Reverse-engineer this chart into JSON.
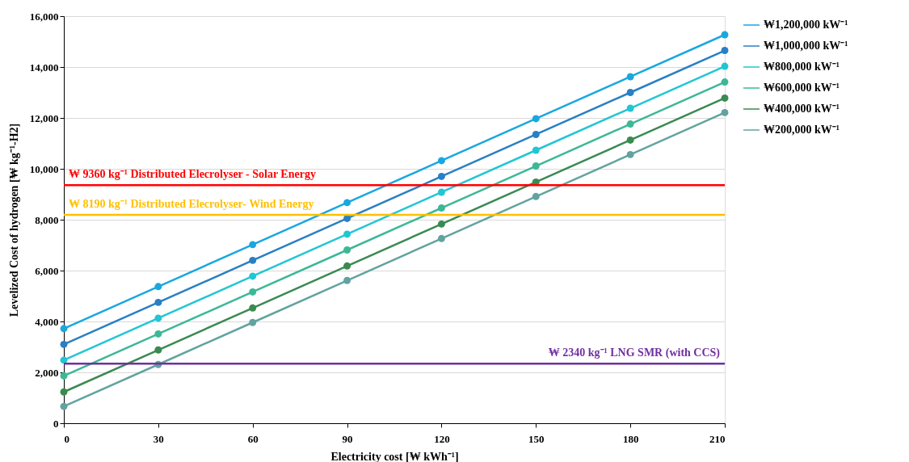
{
  "chart_data": {
    "type": "line",
    "xlabel": "Electricity cost [₩ kWh⁻¹]",
    "ylabel": "Levelized Cost of hydrogen [₩ kg⁻¹-H2]",
    "x": [
      0,
      30,
      60,
      90,
      120,
      150,
      180,
      210
    ],
    "series": [
      {
        "name": "₩1,200,000 kW⁻¹",
        "color": "#1aa7e0",
        "values": [
          3720,
          5370,
          7020,
          8670,
          10320,
          11970,
          13620,
          15270
        ]
      },
      {
        "name": "₩1,000,000 kW⁻¹",
        "color": "#2a7fc4",
        "values": [
          3100,
          4750,
          6400,
          8050,
          9700,
          11350,
          13000,
          14650
        ]
      },
      {
        "name": "₩800,000 kW⁻¹",
        "color": "#22c6d3",
        "values": [
          2480,
          4130,
          5780,
          7430,
          9080,
          10730,
          12380,
          14030
        ]
      },
      {
        "name": "₩600,000 kW⁻¹",
        "color": "#3cb896",
        "values": [
          1860,
          3510,
          5160,
          6810,
          8460,
          10110,
          11760,
          13410
        ]
      },
      {
        "name": "₩400,000 kW⁻¹",
        "color": "#3a8a52",
        "values": [
          1230,
          2880,
          4530,
          6180,
          7830,
          9480,
          11130,
          12780
        ]
      },
      {
        "name": "₩200,000 kW⁻¹",
        "color": "#62a3a0",
        "values": [
          660,
          2310,
          3960,
          5610,
          7260,
          8910,
          10560,
          12210
        ]
      }
    ],
    "ref_lines": [
      {
        "axis": "y",
        "value": 9360,
        "label": "₩ 9360 kg⁻¹  Distributed Elecrolyser - Solar Energy",
        "color": "#ff0000"
      },
      {
        "axis": "y",
        "value": 8190,
        "label": "₩ 8190 kg⁻¹  Distributed Elecrolyser- Wind Energy",
        "color": "#ffc000"
      },
      {
        "axis": "y",
        "value": 2340,
        "label": "₩ 2340 kg⁻¹  LNG SMR (with CCS)",
        "color": "#7030a0"
      }
    ],
    "xlim": [
      0,
      210
    ],
    "xticks": [
      0,
      30,
      60,
      90,
      120,
      150,
      180,
      210
    ],
    "ylim": [
      0,
      16000
    ],
    "yticks": [
      0,
      {
        "value": 2000,
        "label": "2,000"
      },
      {
        "value": 4000,
        "label": "4,000"
      },
      {
        "value": 6000,
        "label": "6,000"
      },
      {
        "value": 8000,
        "label": "8,000"
      },
      {
        "value": 10000,
        "label": "10,000"
      },
      {
        "value": 12000,
        "label": "12,000"
      },
      {
        "value": 14000,
        "label": "14,000"
      },
      {
        "value": 16000,
        "label": "16,000"
      }
    ],
    "grid": "y",
    "legend": "right",
    "marker": "circle",
    "line_style": "solid"
  }
}
